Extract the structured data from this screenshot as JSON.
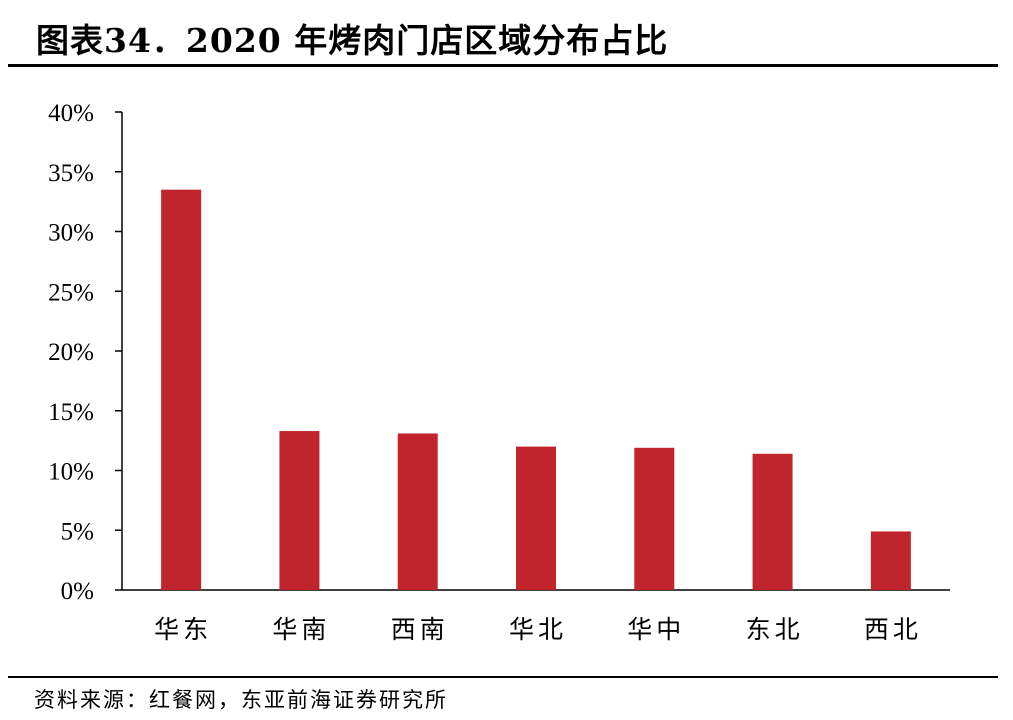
{
  "title": "图表34．2020 年烤肉门店区域分布占比",
  "source": "资料来源：红餐网，东亚前海证券研究所",
  "chart_data": {
    "type": "bar",
    "categories": [
      "华东",
      "华南",
      "西南",
      "华北",
      "华中",
      "东北",
      "西北"
    ],
    "values": [
      33.5,
      13.3,
      13.1,
      12.0,
      11.9,
      11.4,
      4.9
    ],
    "ylim": [
      0,
      40
    ],
    "yticks": [
      0,
      5,
      10,
      15,
      20,
      25,
      30,
      35,
      40
    ],
    "ytick_labels": [
      "0%",
      "5%",
      "10%",
      "15%",
      "20%",
      "25%",
      "30%",
      "35%",
      "40%"
    ],
    "title": "",
    "xlabel": "",
    "ylabel": "",
    "grid": false,
    "bar_color": "#c0242c"
  }
}
